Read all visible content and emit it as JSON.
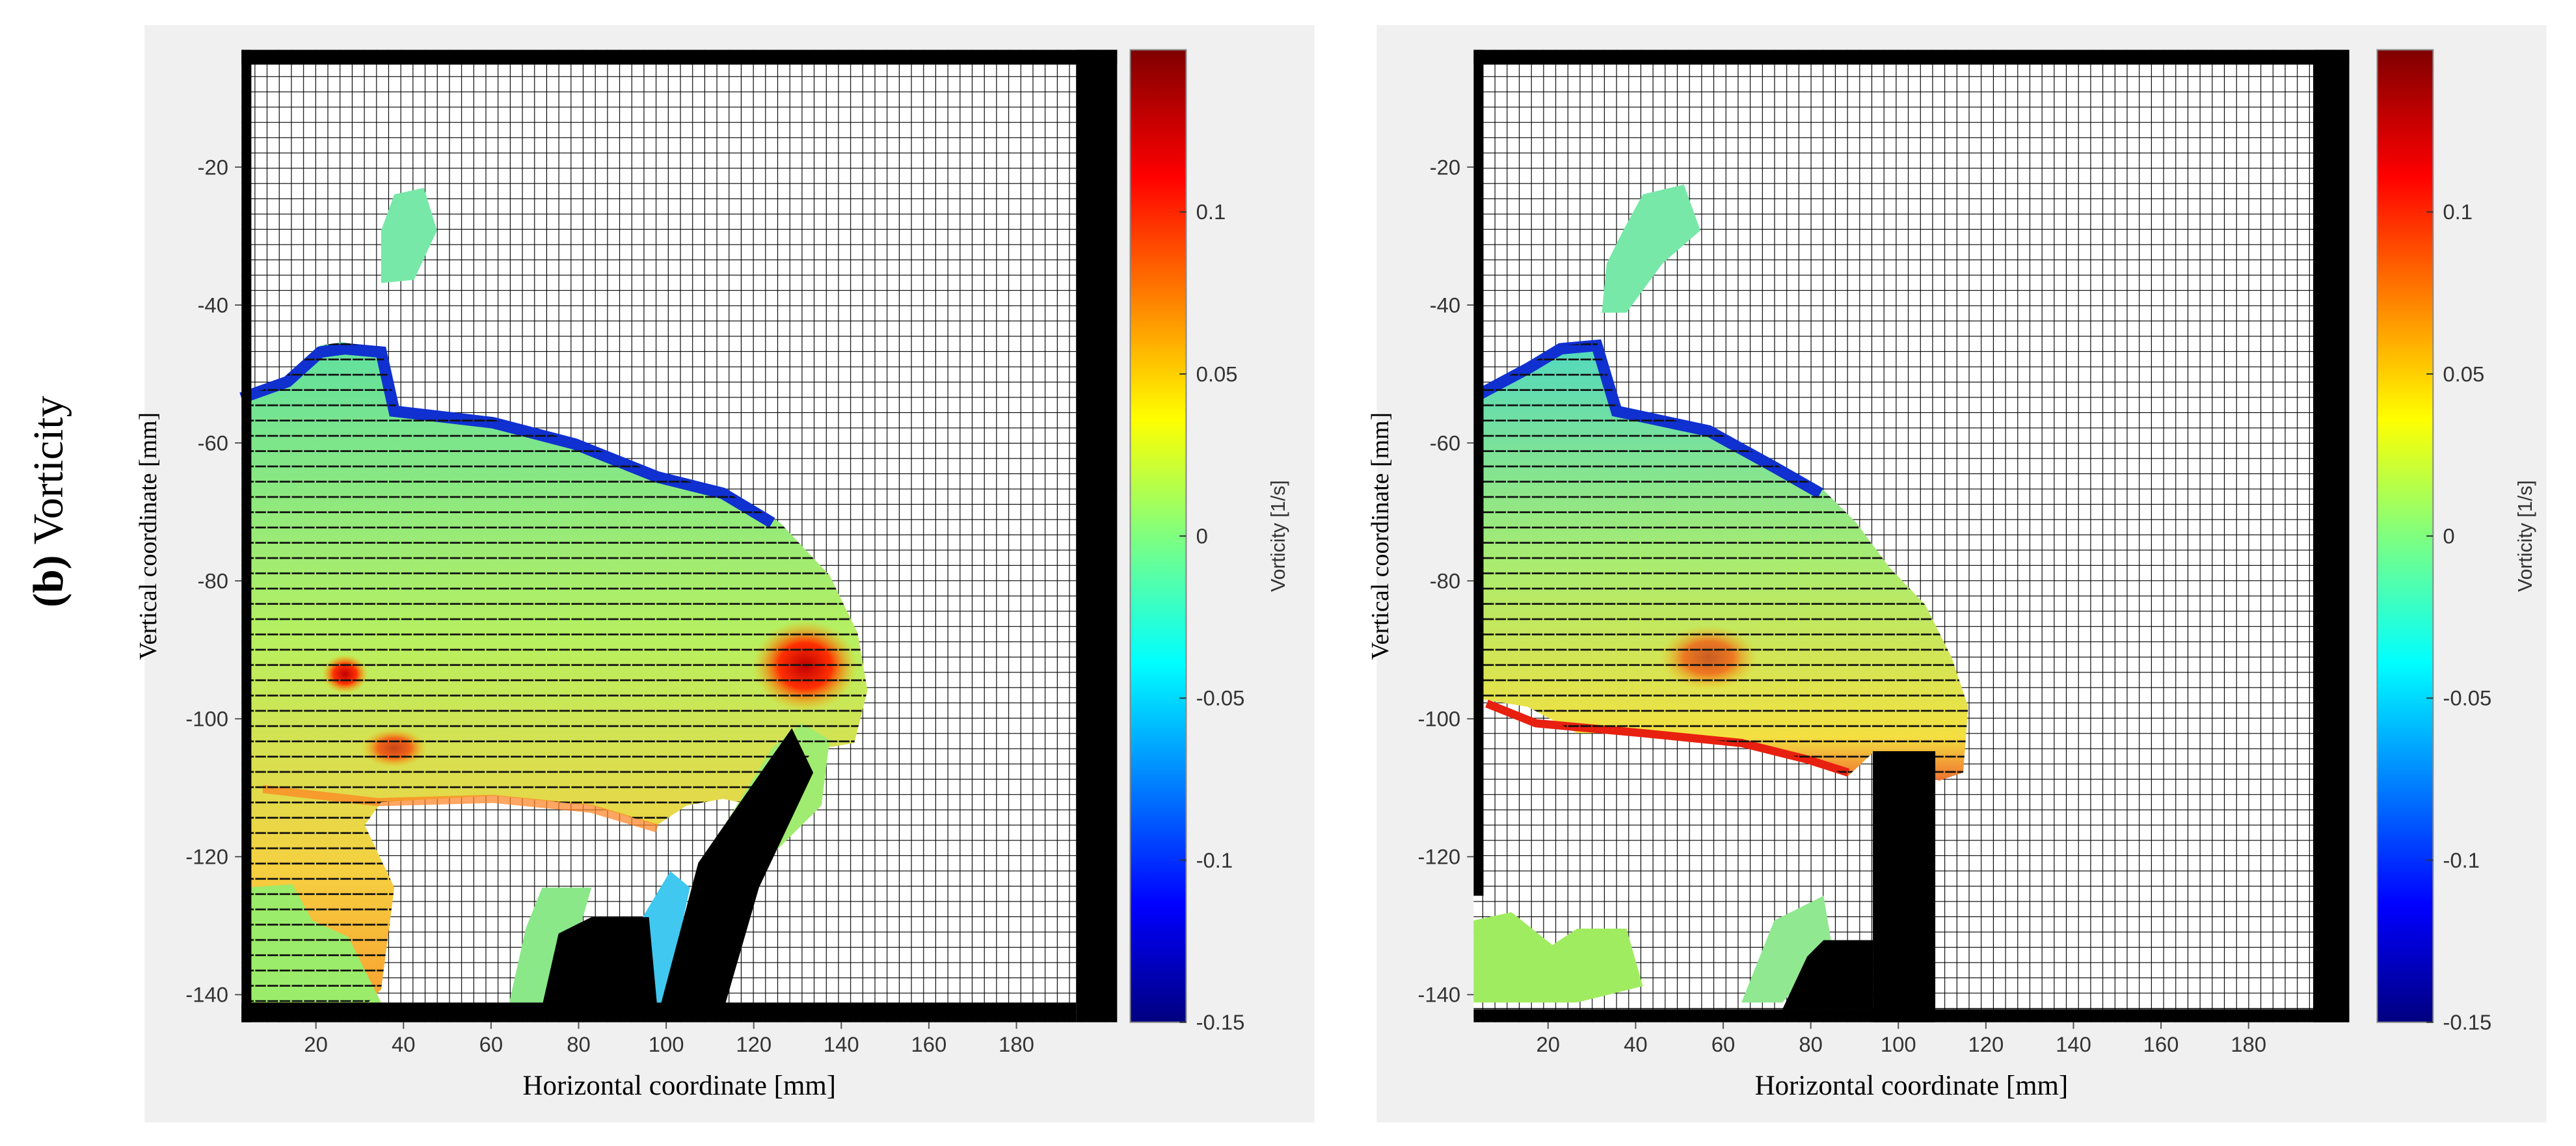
{
  "panel_label": {
    "letter": "(b)",
    "text": "Vorticity"
  },
  "chart_data": [
    {
      "type": "vector-field",
      "xlabel": "Horizontal coordinate [mm]",
      "ylabel": "Vertical coordinate [mm]",
      "xlim": [
        3,
        203
      ],
      "ylim": [
        -144,
        -3
      ],
      "xticks": [
        20,
        40,
        60,
        80,
        100,
        120,
        140,
        160,
        180
      ],
      "yticks": [
        -20,
        -40,
        -60,
        -80,
        -100,
        -120,
        -140
      ],
      "colorbar_label": "Vorticity [1/s]",
      "clim": [
        -0.15,
        0.15
      ],
      "colorbar_ticks": [
        0.1,
        0.05,
        0,
        -0.05,
        -0.1,
        -0.15
      ],
      "colormap": "jet"
    },
    {
      "type": "vector-field",
      "xlabel": "Horizontal coordinate [mm]",
      "ylabel": "Vertical coordinate [mm]",
      "xlim": [
        3,
        203
      ],
      "ylim": [
        -144,
        -3
      ],
      "xticks": [
        20,
        40,
        60,
        80,
        100,
        120,
        140,
        160,
        180
      ],
      "yticks": [
        -20,
        -40,
        -60,
        -80,
        -100,
        -120,
        -140
      ],
      "colorbar_label": "Vorticity [1/s]",
      "clim": [
        -0.15,
        0.15
      ],
      "colorbar_ticks": [
        0.1,
        0.05,
        0,
        -0.05,
        -0.1,
        -0.15
      ],
      "colormap": "jet"
    }
  ]
}
